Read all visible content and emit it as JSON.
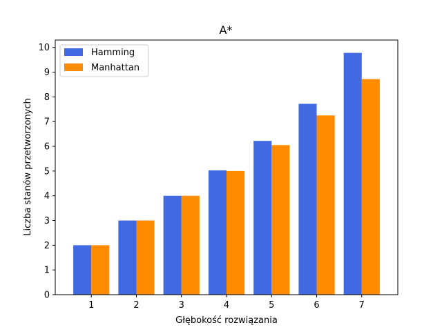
{
  "chart_data": {
    "type": "bar",
    "title": "A*",
    "xlabel": "Głębokość rozwiązania",
    "ylabel": "Liczba stanów przetworzonych",
    "categories": [
      "1",
      "2",
      "3",
      "4",
      "5",
      "6",
      "7"
    ],
    "yticks": [
      "0",
      "1",
      "2",
      "3",
      "4",
      "5",
      "6",
      "7",
      "8",
      "9",
      "10"
    ],
    "ylim": [
      0,
      10.3
    ],
    "grid": false,
    "legend_position": "top-left",
    "series": [
      {
        "name": "Hamming",
        "color": "#4169e1",
        "values": [
          2.0,
          3.0,
          4.0,
          5.03,
          6.22,
          7.72,
          9.78
        ]
      },
      {
        "name": "Manhattan",
        "color": "#ff8c00",
        "values": [
          2.0,
          3.0,
          4.0,
          5.0,
          6.05,
          7.25,
          8.72
        ]
      }
    ]
  }
}
